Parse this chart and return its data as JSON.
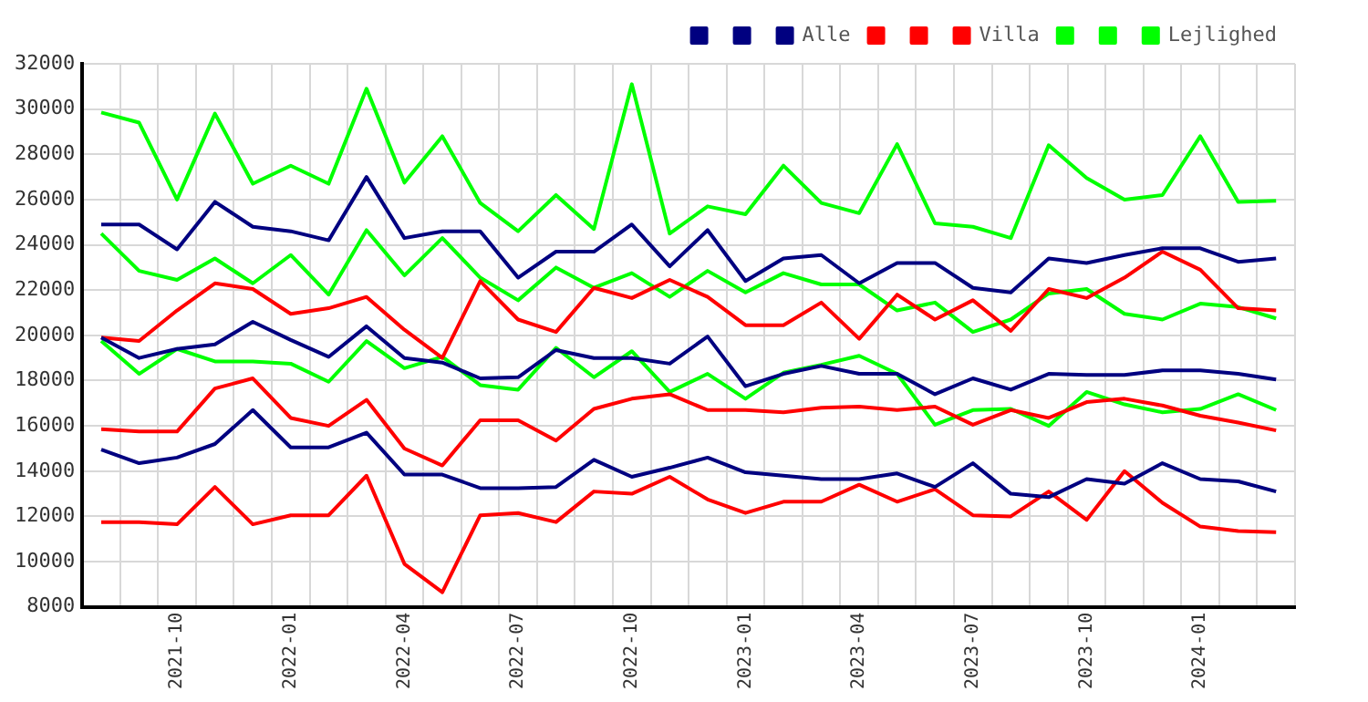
{
  "chart_data": {
    "type": "line",
    "categories": [
      null,
      null,
      "2021-10",
      null,
      null,
      "2022-01",
      null,
      null,
      "2022-04",
      null,
      null,
      "2022-07",
      null,
      null,
      "2022-10",
      null,
      null,
      "2023-01",
      null,
      null,
      "2023-04",
      null,
      null,
      "2023-07",
      null,
      null,
      "2023-10",
      null,
      null,
      "2024-01",
      null,
      null
    ],
    "series": [
      {
        "color": "#000080",
        "values": [
          14950,
          14350,
          14600,
          15200,
          16700,
          15050,
          15050,
          15700,
          13850,
          13850,
          13250,
          13250,
          13300,
          14500,
          13750,
          14150,
          14600,
          13950,
          13800,
          13650,
          13650,
          13900,
          13300,
          14350,
          13000,
          12850,
          13650,
          13450,
          14350,
          13650,
          13550,
          13100
        ]
      },
      {
        "color": "#000080",
        "values": [
          19900,
          19000,
          19400,
          19600,
          20600,
          19800,
          19050,
          20400,
          19000,
          18800,
          18100,
          18150,
          19350,
          19000,
          19000,
          18750,
          19950,
          17750,
          18300,
          18650,
          18300,
          18300,
          17400,
          18100,
          17600,
          18300,
          18250,
          18250,
          18450,
          18450,
          18300,
          18050
        ]
      },
      {
        "name": "Alle",
        "color": "#000080",
        "values": [
          24900,
          24900,
          23800,
          25900,
          24800,
          24600,
          24200,
          27000,
          24300,
          24600,
          24600,
          22550,
          23700,
          23700,
          24900,
          23050,
          24650,
          22400,
          23400,
          23550,
          22300,
          23200,
          23200,
          22100,
          21900,
          23400,
          23200,
          23550,
          23850,
          23850,
          23250,
          23400
        ]
      },
      {
        "color": "#ff0000",
        "values": [
          11750,
          11750,
          11650,
          13300,
          11650,
          12050,
          12050,
          13800,
          9900,
          8650,
          12050,
          12150,
          11750,
          13100,
          13000,
          13750,
          12750,
          12150,
          12650,
          12650,
          13400,
          12650,
          13200,
          12050,
          12000,
          13100,
          11850,
          14000,
          12600,
          11550,
          11350,
          11300
        ]
      },
      {
        "color": "#ff0000",
        "values": [
          15850,
          15750,
          15750,
          17650,
          18100,
          16350,
          16000,
          17150,
          15000,
          14250,
          16250,
          16250,
          15350,
          16750,
          17200,
          17400,
          16700,
          16700,
          16600,
          16800,
          16850,
          16700,
          16850,
          16050,
          16700,
          16350,
          17050,
          17200,
          16900,
          16450,
          16150,
          15800
        ]
      },
      {
        "name": "Villa",
        "color": "#ff0000",
        "values": [
          19900,
          19750,
          21100,
          22300,
          22050,
          20950,
          21200,
          21700,
          20250,
          19000,
          22400,
          20700,
          20150,
          22100,
          21650,
          22450,
          21700,
          20450,
          20450,
          21450,
          19850,
          21800,
          20700,
          21550,
          20200,
          22050,
          21650,
          22550,
          23700,
          22900,
          21200,
          21100
        ]
      },
      {
        "color": "#00ff00",
        "values": [
          19750,
          18300,
          19400,
          18850,
          18850,
          18750,
          17950,
          19750,
          18550,
          19050,
          17800,
          17600,
          19450,
          18150,
          19300,
          17500,
          18300,
          17200,
          18350,
          18700,
          19100,
          18300,
          16050,
          16700,
          16750,
          16000,
          17500,
          16950,
          16600,
          16750,
          17400,
          16700
        ]
      },
      {
        "color": "#00ff00",
        "values": [
          24500,
          22850,
          22450,
          23400,
          22300,
          23550,
          21800,
          24650,
          22650,
          24300,
          22550,
          21550,
          23000,
          22100,
          22750,
          21700,
          22850,
          21900,
          22750,
          22250,
          22250,
          21100,
          21450,
          20150,
          20700,
          21850,
          22050,
          20950,
          20700,
          21400,
          21250,
          20750
        ]
      },
      {
        "name": "Lejlighed",
        "color": "#00ff00",
        "values": [
          29850,
          29400,
          26000,
          29800,
          26700,
          27500,
          26700,
          30900,
          26750,
          28800,
          25850,
          24600,
          26200,
          24700,
          31100,
          24500,
          25700,
          25350,
          27500,
          25850,
          25400,
          28450,
          24950,
          24800,
          24300,
          28400,
          26950,
          26000,
          26200,
          28800,
          25900,
          25950
        ]
      }
    ],
    "ylim": [
      8000,
      32000
    ],
    "yticks": [
      8000,
      10000,
      12000,
      14000,
      16000,
      18000,
      20000,
      22000,
      24000,
      26000,
      28000,
      30000,
      32000
    ],
    "grid": true,
    "legend": "top right",
    "marker": "none"
  }
}
